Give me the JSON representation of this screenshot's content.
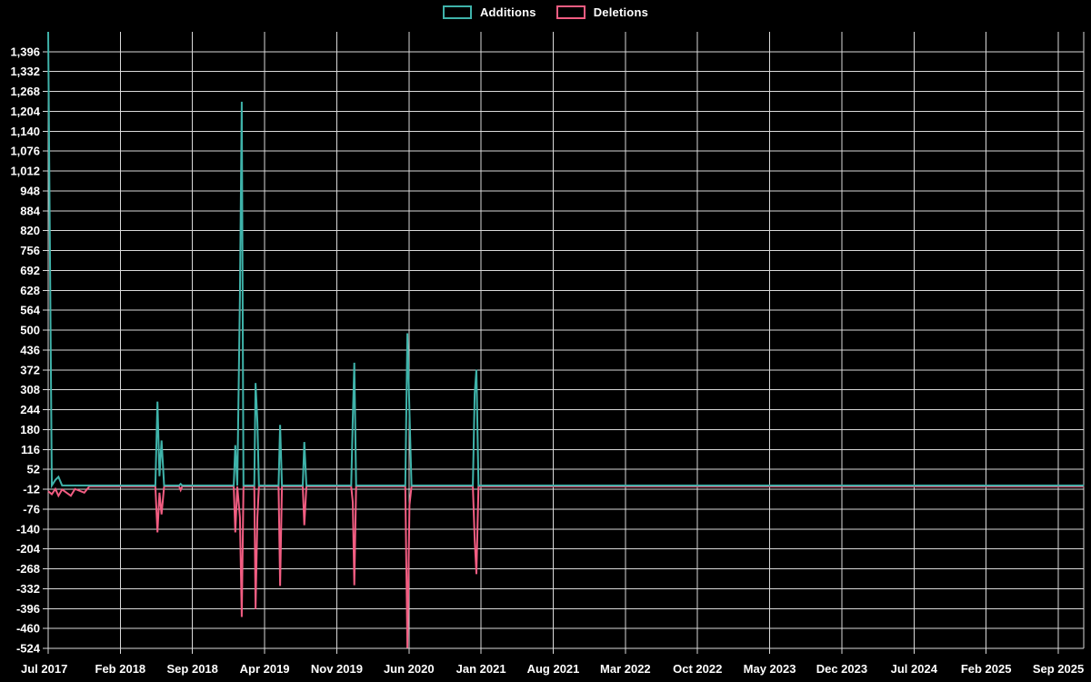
{
  "legend": {
    "items": [
      {
        "label": "Additions",
        "color": "#3fb3aa"
      },
      {
        "label": "Deletions",
        "color": "#f25d82"
      }
    ]
  },
  "colors": {
    "background": "#000000",
    "gridline": "#d9d9d9",
    "text": "#ffffff",
    "additions": "#3fb3aa",
    "deletions": "#f25d82"
  },
  "chart_data": {
    "type": "line",
    "title": "",
    "xlabel": "",
    "ylabel": "",
    "grid": true,
    "legend_position": "top",
    "x_axis": {
      "labels": [
        "Jul 2017",
        "Feb 2018",
        "Sep 2018",
        "Apr 2019",
        "Nov 2019",
        "Jun 2020",
        "Jan 2021",
        "Aug 2021",
        "Mar 2022",
        "Oct 2022",
        "May 2023",
        "Dec 2023",
        "Jul 2024",
        "Feb 2025",
        "Sep 2025"
      ],
      "label_month_indices": [
        0,
        7,
        14,
        21,
        28,
        35,
        42,
        49,
        56,
        63,
        70,
        77,
        84,
        91,
        98
      ],
      "domain_months": [
        0,
        100.5
      ]
    },
    "y_axis": {
      "min": -524,
      "max": 1460,
      "tick_min": -524,
      "tick_max": 1396,
      "tick_step": 64,
      "tick_labels": [
        "-524",
        "-460",
        "-396",
        "-332",
        "-268",
        "-204",
        "-140",
        "-76",
        "-12",
        "52",
        "116",
        "180",
        "244",
        "308",
        "372",
        "436",
        "500",
        "564",
        "628",
        "692",
        "756",
        "820",
        "884",
        "948",
        "1,012",
        "1,076",
        "1,140",
        "1,204",
        "1,268",
        "1,332",
        "1,396"
      ]
    },
    "point_format": [
      "month_index_from_jul_2017",
      "additions",
      "deletions"
    ],
    "points": [
      [
        0.0,
        1460,
        -15
      ],
      [
        0.35,
        0,
        -25
      ],
      [
        0.7,
        18,
        -8
      ],
      [
        1.0,
        28,
        -30
      ],
      [
        1.35,
        0,
        -10
      ],
      [
        2.2,
        0,
        -30
      ],
      [
        2.6,
        0,
        -8
      ],
      [
        3.5,
        0,
        -20
      ],
      [
        4.0,
        0,
        0
      ],
      [
        10.4,
        0,
        0
      ],
      [
        10.6,
        270,
        -148
      ],
      [
        10.8,
        30,
        -20
      ],
      [
        11.0,
        145,
        -90
      ],
      [
        11.25,
        0,
        0
      ],
      [
        12.7,
        0,
        0
      ],
      [
        12.85,
        5,
        -12
      ],
      [
        13.0,
        0,
        0
      ],
      [
        18.0,
        0,
        0
      ],
      [
        18.15,
        130,
        -148
      ],
      [
        18.35,
        0,
        0
      ],
      [
        18.6,
        610,
        -100
      ],
      [
        18.78,
        1235,
        -420
      ],
      [
        18.95,
        0,
        0
      ],
      [
        20.0,
        0,
        0
      ],
      [
        20.12,
        330,
        -395
      ],
      [
        20.3,
        205,
        -100
      ],
      [
        20.45,
        0,
        0
      ],
      [
        22.35,
        0,
        0
      ],
      [
        22.5,
        195,
        -320
      ],
      [
        22.68,
        0,
        0
      ],
      [
        24.7,
        0,
        0
      ],
      [
        24.85,
        140,
        -125
      ],
      [
        25.05,
        0,
        0
      ],
      [
        29.4,
        0,
        0
      ],
      [
        29.55,
        210,
        -50
      ],
      [
        29.7,
        395,
        -318
      ],
      [
        29.88,
        0,
        0
      ],
      [
        34.65,
        0,
        0
      ],
      [
        34.85,
        490,
        -520
      ],
      [
        35.05,
        235,
        -60
      ],
      [
        35.25,
        0,
        0
      ],
      [
        41.2,
        0,
        0
      ],
      [
        41.38,
        295,
        -170
      ],
      [
        41.55,
        373,
        -282
      ],
      [
        41.75,
        0,
        0
      ],
      [
        100.5,
        0,
        0
      ]
    ],
    "series": [
      {
        "name": "Additions",
        "color": "#3fb3aa"
      },
      {
        "name": "Deletions",
        "color": "#f25d82"
      }
    ]
  }
}
